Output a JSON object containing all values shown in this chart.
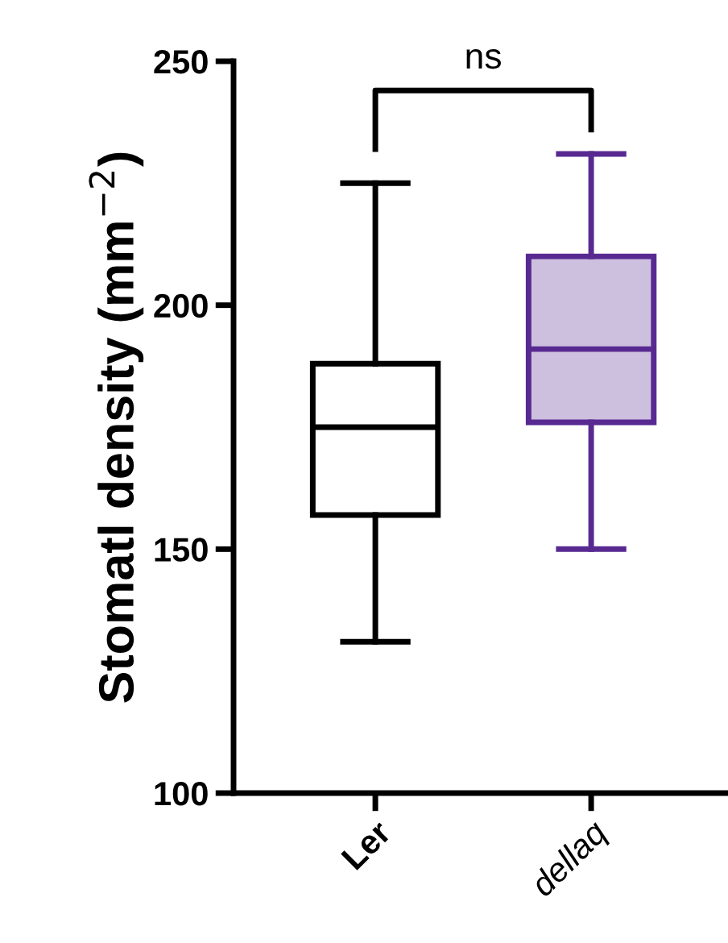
{
  "chart_data": {
    "type": "box",
    "ylabel": "Stomatl density (mm$^{−2}$)",
    "categories": [
      "Ler",
      "dellaq"
    ],
    "ylim": [
      100,
      250
    ],
    "yticks": [
      100,
      150,
      200,
      250
    ],
    "grid": false,
    "legend": false,
    "annotations": [
      "ns"
    ],
    "series": [
      {
        "color": "#000000",
        "boxes": [
          {
            "low": 131,
            "q1": 157,
            "median": 175,
            "q3": 188,
            "high": 225
          },
          null
        ]
      },
      {
        "color": "#582a91",
        "boxes": [
          null,
          {
            "low": 150,
            "q1": 176,
            "median": 191,
            "q3": 210,
            "high": 231
          }
        ]
      }
    ]
  }
}
